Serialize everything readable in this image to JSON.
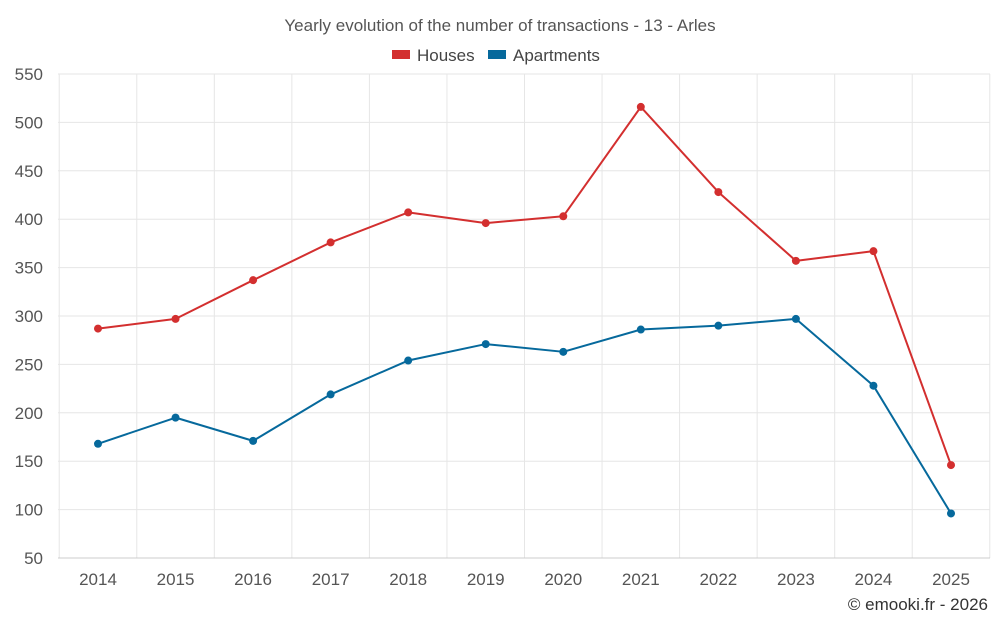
{
  "chart_data": {
    "type": "line",
    "title": "Yearly evolution of the number of transactions - 13 - Arles",
    "categories": [
      "2014",
      "2015",
      "2016",
      "2017",
      "2018",
      "2019",
      "2020",
      "2021",
      "2022",
      "2023",
      "2024",
      "2025"
    ],
    "series": [
      {
        "name": "Houses",
        "color": "#d32f2f",
        "values": [
          287,
          297,
          337,
          376,
          407,
          396,
          403,
          516,
          428,
          357,
          367,
          146
        ]
      },
      {
        "name": "Apartments",
        "color": "#06699c",
        "values": [
          168,
          195,
          171,
          219,
          254,
          271,
          263,
          286,
          290,
          297,
          228,
          96
        ]
      }
    ],
    "ylim": [
      50,
      550
    ],
    "yticks": [
      50,
      100,
      150,
      200,
      250,
      300,
      350,
      400,
      450,
      500,
      550
    ],
    "xlabel": "",
    "ylabel": "",
    "grid": true,
    "legend_position": "top-center"
  },
  "credit": "© emooki.fr - 2026"
}
